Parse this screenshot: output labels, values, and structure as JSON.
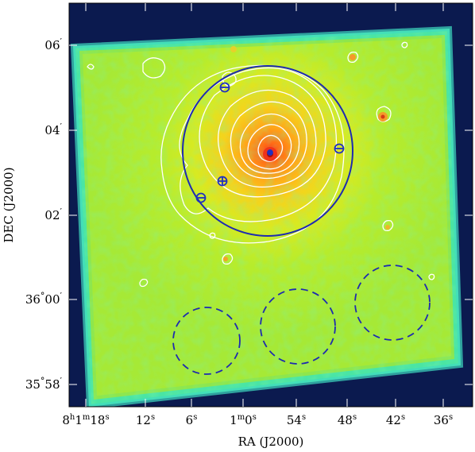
{
  "figure": {
    "xlabel": "RA (J2000)",
    "ylabel": "DEC (J2000)",
    "x_ticks": [
      {
        "main": "8",
        "sup": "h",
        "main2": "1",
        "sup2": "m",
        "main3": "18",
        "sup3": "s"
      },
      {
        "main": "12",
        "sup": "s"
      },
      {
        "main": "6",
        "sup": "s"
      },
      {
        "main": "1",
        "sup": "m",
        "main2": "0",
        "sup2": "s"
      },
      {
        "main": "54",
        "sup": "s"
      },
      {
        "main": "48",
        "sup": "s"
      },
      {
        "main": "42",
        "sup": "s"
      },
      {
        "main": "36",
        "sup": "s"
      }
    ],
    "y_ticks": [
      {
        "main": "06",
        "sup": "′"
      },
      {
        "main": "04",
        "sup": "′"
      },
      {
        "main": "02",
        "sup": "′"
      },
      {
        "main": "36",
        "sup": "°",
        "main2": "00",
        "sup2": "′"
      },
      {
        "main": "35",
        "sup": "°",
        "main2": "58",
        "sup2": "′"
      }
    ]
  },
  "colors": {
    "background": "#0b1a4f",
    "field_outer": "#34e6b4",
    "field_mid": "#b9ee2b",
    "field_inner": "#f7c21a",
    "core": "#f0331a",
    "contour": "#ffffff",
    "circle": "#1e2bb0",
    "source_marker": "#2030c0"
  },
  "markers": {
    "main_circle": "extraction-circle",
    "excluded_sources": [
      "point-source-1",
      "point-source-2",
      "point-source-3",
      "point-source-4",
      "point-source-5"
    ],
    "background_regions": [
      "bkg-region-1",
      "bkg-region-2",
      "bkg-region-3"
    ]
  }
}
